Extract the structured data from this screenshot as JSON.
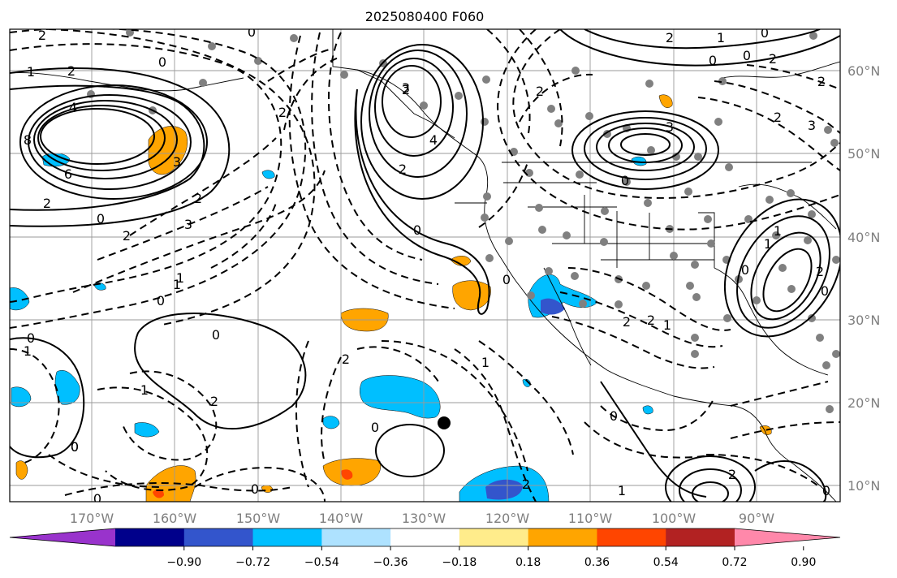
{
  "title": "2025080400 F060",
  "lon_labels": [
    "170°W",
    "160°W",
    "150°W",
    "140°W",
    "130°W",
    "120°W",
    "110°W",
    "100°W",
    "90°W"
  ],
  "lat_labels": [
    "60°N",
    "50°N",
    "40°N",
    "30°N",
    "20°N",
    "10°N"
  ],
  "colorbar": {
    "colors": [
      "#9933cc",
      "#00008b",
      "#3355cc",
      "#00bfff",
      "#aee2ff",
      "#ffffff",
      "#ffec8b",
      "#ffa500",
      "#ff4500",
      "#b22222",
      "#ff88aa"
    ],
    "labels": [
      "−0.90",
      "−0.72",
      "−0.54",
      "−0.36",
      "−0.18",
      "0.18",
      "0.36",
      "0.54",
      "0.72",
      "0.90"
    ]
  },
  "contour_labels": [
    "2",
    "2",
    "0",
    "1",
    "4",
    "8",
    "6",
    "2",
    "0",
    "3",
    "2",
    "2",
    "3",
    "2",
    "0",
    "2",
    "0",
    "3",
    "4",
    "2",
    "0",
    "2",
    "0",
    "3",
    "2",
    "2",
    "0",
    "2",
    "0",
    "1",
    "2",
    "3",
    "1",
    "1",
    "0",
    "0",
    "1",
    "2",
    "1",
    "0",
    "0",
    "2",
    "1",
    "0",
    "1",
    "0",
    "1",
    "0",
    "0",
    "2",
    "0",
    "2",
    "2",
    "2",
    "1",
    "0",
    "0",
    "0",
    "1",
    "2",
    "0"
  ]
}
